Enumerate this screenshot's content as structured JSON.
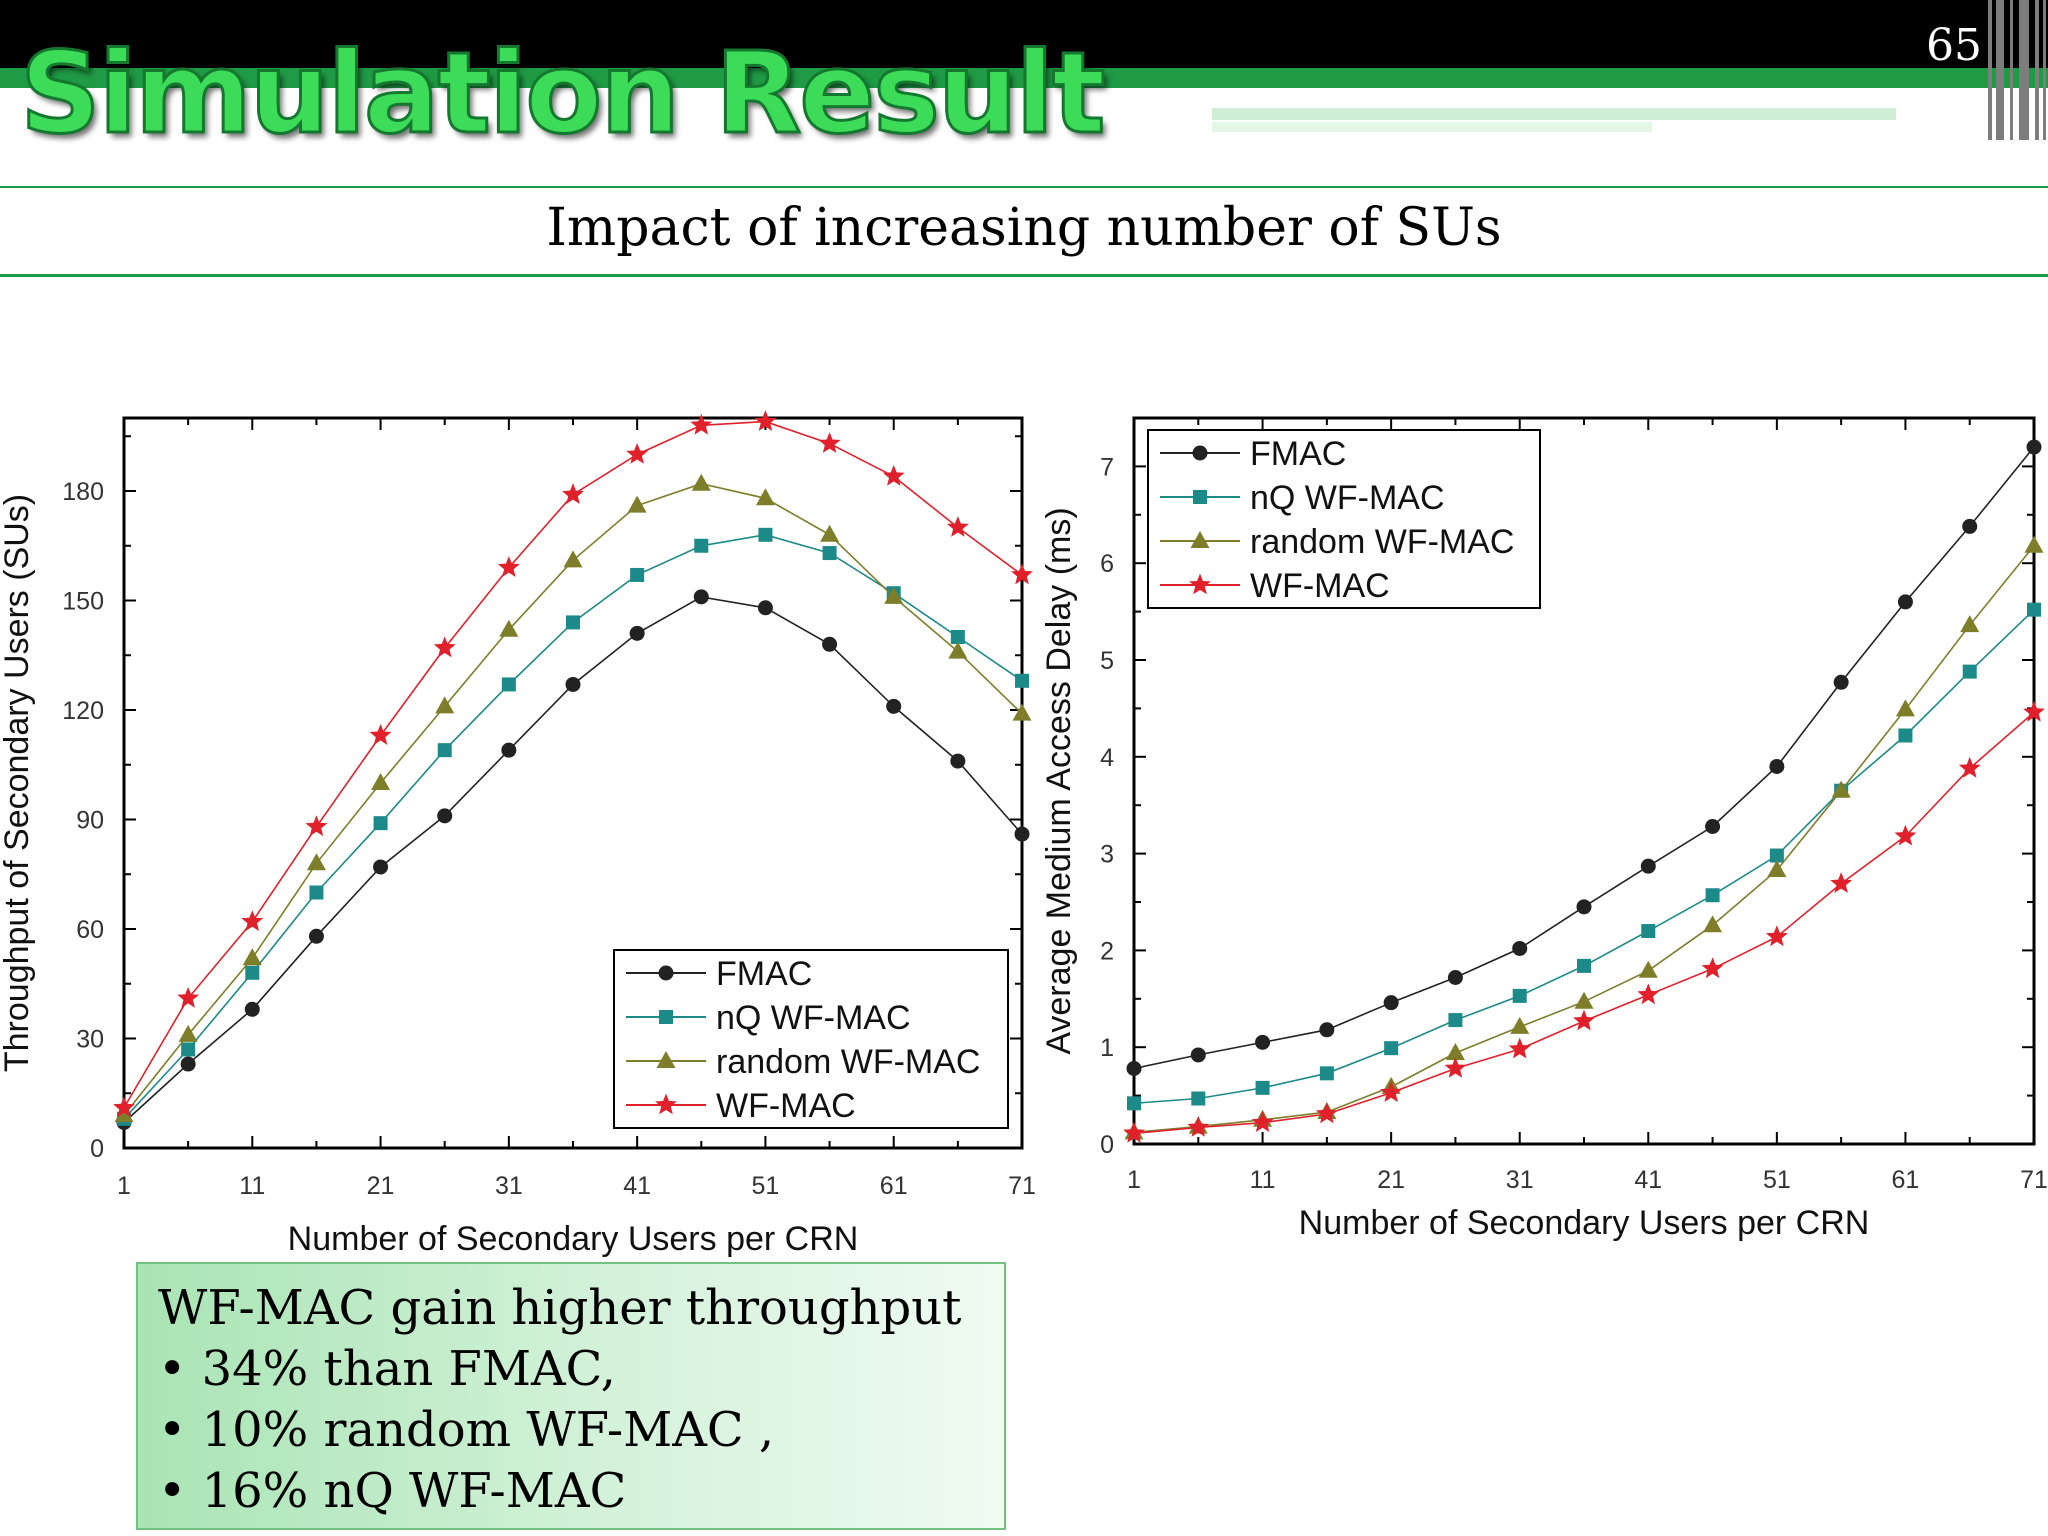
{
  "slide": {
    "title": "Simulation Result",
    "page_number": "65",
    "subtitle": "Impact of increasing number of SUs",
    "colors": {
      "header_bar": "#000000",
      "accent_green": "#1f9a45",
      "title_green": "#3ddc58"
    }
  },
  "callout": {
    "heading": "WF-MAC gain higher throughput",
    "bullets": [
      "34% than FMAC,",
      "10% random WF-MAC ,",
      "16% nQ WF-MAC"
    ],
    "bullet_symbol": "•"
  },
  "chart_data": [
    {
      "type": "line",
      "title": "",
      "xlabel": "Number of Secondary Users per CRN",
      "ylabel": "Throughput of Secondary Users (SUs)",
      "x": [
        1,
        6,
        11,
        16,
        21,
        26,
        31,
        36,
        41,
        46,
        51,
        56,
        61,
        66,
        71
      ],
      "xlim": [
        1,
        71
      ],
      "ylim": [
        0,
        200
      ],
      "xticks": [
        1,
        11,
        21,
        31,
        41,
        51,
        61,
        71
      ],
      "yticks": [
        0,
        30,
        60,
        90,
        120,
        150,
        180
      ],
      "legend_position": "bottom-right",
      "series": [
        {
          "name": "FMAC",
          "marker": "circle",
          "color": "#222222",
          "values": [
            7,
            23,
            38,
            58,
            77,
            91,
            109,
            127,
            141,
            151,
            148,
            138,
            121,
            106,
            86
          ]
        },
        {
          "name": "nQ WF-MAC",
          "marker": "square",
          "color": "#1d8a8a",
          "values": [
            8,
            27,
            48,
            70,
            89,
            109,
            127,
            144,
            157,
            165,
            168,
            163,
            152,
            140,
            128
          ]
        },
        {
          "name": "random WF-MAC",
          "marker": "triangle",
          "color": "#7e7e2a",
          "values": [
            9,
            31,
            52,
            78,
            100,
            121,
            142,
            161,
            176,
            182,
            178,
            168,
            151,
            136,
            119
          ]
        },
        {
          "name": "WF-MAC",
          "marker": "star",
          "color": "#e0202a",
          "values": [
            11,
            41,
            62,
            88,
            113,
            137,
            159,
            179,
            190,
            198,
            199,
            193,
            184,
            170,
            157
          ]
        }
      ]
    },
    {
      "type": "line",
      "title": "",
      "xlabel": "Number of Secondary Users per CRN",
      "ylabel": "Average Medium Access Delay (ms)",
      "x": [
        1,
        6,
        11,
        16,
        21,
        26,
        31,
        36,
        41,
        46,
        51,
        56,
        61,
        66,
        71
      ],
      "xlim": [
        1,
        71
      ],
      "ylim": [
        0,
        7.5
      ],
      "xticks": [
        1,
        11,
        21,
        31,
        41,
        51,
        61,
        71
      ],
      "yticks": [
        0,
        1,
        2,
        3,
        4,
        5,
        6,
        7
      ],
      "legend_position": "top-left",
      "series": [
        {
          "name": "FMAC",
          "marker": "circle",
          "color": "#222222",
          "values": [
            0.78,
            0.92,
            1.05,
            1.18,
            1.46,
            1.72,
            2.02,
            2.45,
            2.87,
            3.28,
            3.9,
            4.77,
            5.6,
            6.38,
            7.2
          ]
        },
        {
          "name": "nQ WF-MAC",
          "marker": "square",
          "color": "#1d8a8a",
          "values": [
            0.42,
            0.47,
            0.58,
            0.73,
            0.99,
            1.28,
            1.53,
            1.84,
            2.2,
            2.57,
            2.98,
            3.65,
            4.22,
            4.88,
            5.52
          ]
        },
        {
          "name": "random WF-MAC",
          "marker": "triangle",
          "color": "#7e7e2a",
          "values": [
            0.12,
            0.18,
            0.25,
            0.33,
            0.59,
            0.94,
            1.21,
            1.47,
            1.79,
            2.26,
            2.83,
            3.65,
            4.49,
            5.36,
            6.18
          ]
        },
        {
          "name": "WF-MAC",
          "marker": "star",
          "color": "#e0202a",
          "values": [
            0.11,
            0.17,
            0.22,
            0.31,
            0.53,
            0.78,
            0.98,
            1.27,
            1.54,
            1.81,
            2.14,
            2.69,
            3.18,
            3.88,
            4.46
          ]
        }
      ]
    }
  ]
}
